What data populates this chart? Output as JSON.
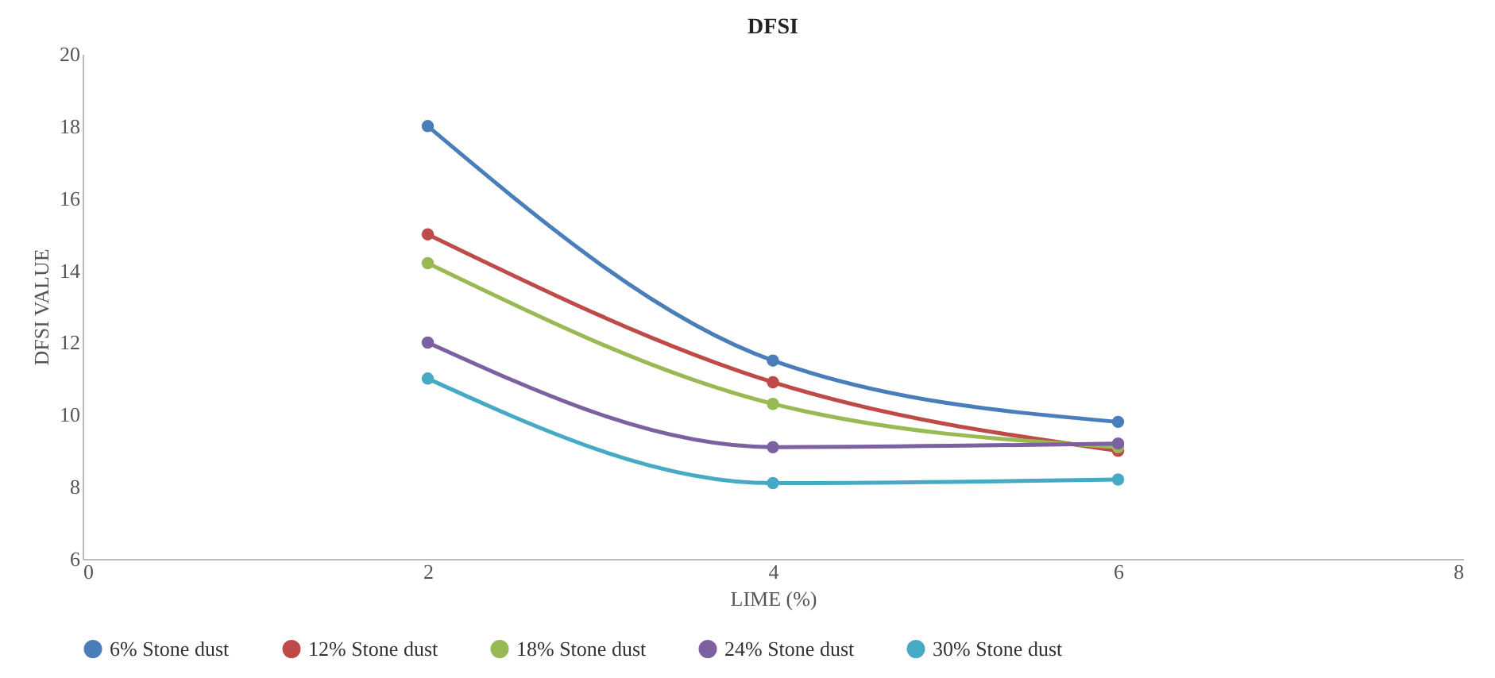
{
  "chart_data": {
    "type": "line",
    "title": "DFSI",
    "xlabel": "LIME (%)",
    "ylabel": "DFSI VALUE",
    "x": [
      2,
      4,
      6
    ],
    "series": [
      {
        "name": "6% Stone dust",
        "color": "#4a7ebb",
        "values": [
          18,
          11.5,
          9.8
        ]
      },
      {
        "name": "12% Stone dust",
        "color": "#be4b48",
        "values": [
          15,
          10.9,
          9.0
        ]
      },
      {
        "name": "18% Stone dust",
        "color": "#98b954",
        "values": [
          14.2,
          10.3,
          9.1
        ]
      },
      {
        "name": "24% Stone dust",
        "color": "#7d60a0",
        "values": [
          12,
          9.1,
          9.2
        ]
      },
      {
        "name": "30% Stone dust",
        "color": "#46aac5",
        "values": [
          11,
          8.1,
          8.2
        ]
      }
    ],
    "xlim": [
      0,
      8
    ],
    "xticks": [
      0,
      2,
      4,
      6,
      8
    ],
    "ylim": [
      6,
      20
    ],
    "yticks": [
      6,
      8,
      10,
      12,
      14,
      16,
      18,
      20
    ],
    "legend": "bottom",
    "marker": "circle",
    "line_style": "solid"
  }
}
